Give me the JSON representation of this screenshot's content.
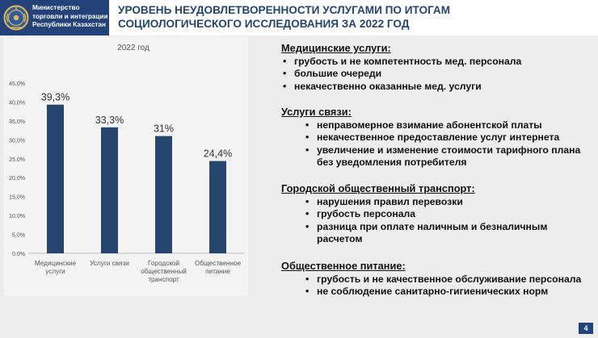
{
  "header": {
    "logo_lines": [
      "Министерство",
      "торговли и интеграции",
      "Республики Казахстан"
    ],
    "title_lines": [
      "УРОВЕНЬ НЕУДОВЛЕТВОРЕННОСТИ УСЛУГАМИ ПО ИТОГАМ",
      "СОЦИОЛОГИЧЕСКОГО ИССЛЕДОВАНИЯ ЗА 2022 ГОД"
    ],
    "colors": {
      "brand": "#24427a",
      "title": "#23456f"
    }
  },
  "chart_data": {
    "type": "bar",
    "title": "2022 год",
    "categories": [
      [
        "Медицинские",
        "услуги"
      ],
      [
        "Услуги связи"
      ],
      [
        "Городской",
        "общественный",
        "транспорт"
      ],
      [
        "Общественное",
        "питание"
      ]
    ],
    "values": [
      39.3,
      33.3,
      31,
      24.4
    ],
    "data_labels": [
      "39,3%",
      "33,3%",
      "31%",
      "24,4%"
    ],
    "ylim": [
      0,
      45
    ],
    "yticks": [
      "0,0%",
      "5,0%",
      "10,0%",
      "15,0%",
      "20,0%",
      "25,0%",
      "30,0%",
      "35,0%",
      "40,0%",
      "45,0%"
    ],
    "bar_color": "#24466f",
    "grid": false
  },
  "sections": [
    {
      "title": "Медицинские услуги:",
      "items": [
        "грубость и не компетентность мед. персонала",
        "большие очереди",
        "некачественно оказанные мед. услуги"
      ]
    },
    {
      "title": "Услуги связи:",
      "items": [
        "неправомерное взимание абонентской платы",
        "некачественное предоставление услуг интернета",
        "увеличение и изменение стоимости тарифного плана без уведомления потребителя"
      ]
    },
    {
      "title": "Городской общественный транспорт:",
      "items": [
        "нарушения правил перевозки",
        "грубость персонала",
        "разница при оплате наличным и безналичным расчетом"
      ]
    },
    {
      "title": "Общественное питание:",
      "items": [
        "грубость и не качественное обслуживание персонала",
        "не соблюдение санитарно-гигиенических норм"
      ]
    }
  ],
  "page_number": "4"
}
